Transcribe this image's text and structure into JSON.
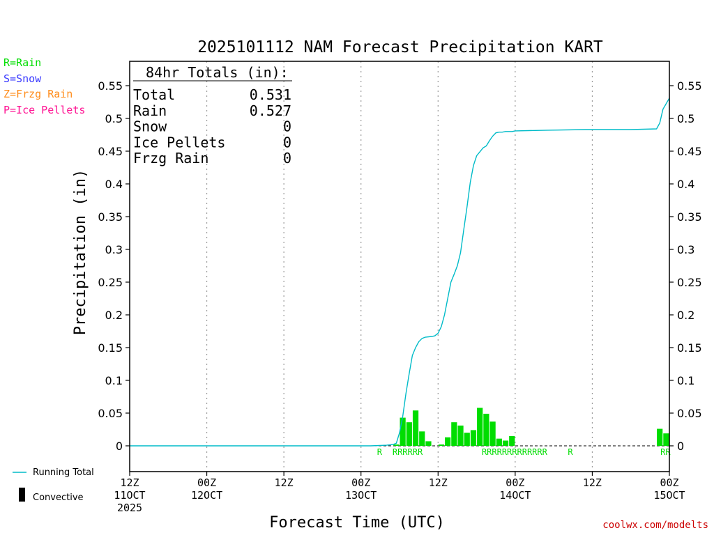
{
  "colors": {
    "rain": "#00dd00",
    "snow": "#3b3bff",
    "frzg_rain": "#ff8c1a",
    "ice_pellets": "#ff1493",
    "running_total": "#00bbc8",
    "convective": "#000000",
    "credit": "#cc0000",
    "grid": "#999999"
  },
  "type_legend": {
    "rain": "R=Rain",
    "snow": "S=Snow",
    "frzg_rain": "Z=Frzg Rain",
    "ice_pellets": "P=Ice Pellets"
  },
  "credit": "coolwx.com/modelts",
  "chart_data": {
    "type": "bar",
    "title": "2025101112 NAM Forecast Precipitation KART",
    "xlabel": "Forecast Time (UTC)",
    "ylabel": "Precipitation (in)",
    "ylim": [
      -0.04,
      0.575
    ],
    "yticks": [
      0,
      0.05,
      0.1,
      0.15,
      0.2,
      0.25,
      0.3,
      0.35,
      0.4,
      0.45,
      0.5,
      0.55
    ],
    "ytick_labels": [
      "0",
      "0.05",
      "0.1",
      "0.15",
      "0.2",
      "0.25",
      "0.3",
      "0.35",
      "0.4",
      "0.45",
      "0.5",
      "0.55"
    ],
    "xlim_hours": [
      0,
      84
    ],
    "xticks": [
      {
        "hour": 0,
        "lines": [
          "12Z",
          "11OCT",
          "2025"
        ]
      },
      {
        "hour": 12,
        "lines": [
          "00Z",
          "12OCT"
        ]
      },
      {
        "hour": 24,
        "lines": [
          "12Z"
        ]
      },
      {
        "hour": 36,
        "lines": [
          "00Z",
          "13OCT"
        ]
      },
      {
        "hour": 48,
        "lines": [
          "12Z"
        ]
      },
      {
        "hour": 60,
        "lines": [
          "00Z",
          "14OCT"
        ]
      },
      {
        "hour": 72,
        "lines": [
          "12Z"
        ]
      },
      {
        "hour": 84,
        "lines": [
          "00Z",
          "15OCT"
        ]
      }
    ],
    "totals_box": {
      "header": "84hr Totals (in):",
      "rows": [
        {
          "label": "Total",
          "value": "0.531"
        },
        {
          "label": "Rain",
          "value": "0.527"
        },
        {
          "label": "Snow",
          "value": "0"
        },
        {
          "label": "Ice Pellets",
          "value": "0"
        },
        {
          "label": "Frzg Rain",
          "value": "0"
        }
      ]
    },
    "legend": [
      {
        "label": "Running Total",
        "kind": "line"
      },
      {
        "label": "Convective",
        "kind": "bar"
      }
    ],
    "hourly_precip": {
      "name": "Hourly precipitation",
      "hour_start": [
        41,
        42,
        43,
        44,
        45,
        46,
        48,
        49,
        50,
        51,
        52,
        53,
        54,
        55,
        56,
        57,
        58,
        59,
        82,
        83
      ],
      "values": [
        0.002,
        0.043,
        0.036,
        0.054,
        0.022,
        0.007,
        0.002,
        0.013,
        0.036,
        0.031,
        0.02,
        0.024,
        0.058,
        0.049,
        0.037,
        0.011,
        0.008,
        0.015,
        0.026,
        0.019
      ]
    },
    "running_total": {
      "name": "Running Total",
      "hours": [
        0,
        37.5,
        40,
        41,
        41.5,
        42,
        42.5,
        43,
        43.5,
        44,
        44.5,
        45,
        45.5,
        46,
        47,
        47.5,
        48,
        48.5,
        49,
        49.5,
        50,
        50.5,
        51,
        51.5,
        52,
        52.5,
        53,
        53.5,
        54,
        54.5,
        55,
        55.5,
        56,
        56.5,
        57,
        57.5,
        58,
        58.5,
        59,
        59.5,
        60,
        65,
        71,
        78,
        82,
        82.5,
        83,
        84
      ],
      "values": [
        0,
        0,
        0.001,
        0.002,
        0.004,
        0.02,
        0.045,
        0.08,
        0.11,
        0.138,
        0.15,
        0.159,
        0.164,
        0.166,
        0.167,
        0.168,
        0.172,
        0.182,
        0.2,
        0.225,
        0.25,
        0.262,
        0.275,
        0.295,
        0.33,
        0.365,
        0.402,
        0.428,
        0.443,
        0.449,
        0.455,
        0.458,
        0.466,
        0.473,
        0.478,
        0.479,
        0.479,
        0.48,
        0.48,
        0.48,
        0.481,
        0.482,
        0.483,
        0.483,
        0.484,
        0.493,
        0.514,
        0.531
      ]
    },
    "type_marks": [
      {
        "hour": 38.5,
        "text": "R"
      },
      {
        "hour": 40.9,
        "text": "RRRRRR"
      },
      {
        "hour": 54.8,
        "text": "RRRRRRRRRRRRR"
      },
      {
        "hour": 68.2,
        "text": "R"
      },
      {
        "hour": 82.6,
        "text": "RR"
      }
    ]
  }
}
